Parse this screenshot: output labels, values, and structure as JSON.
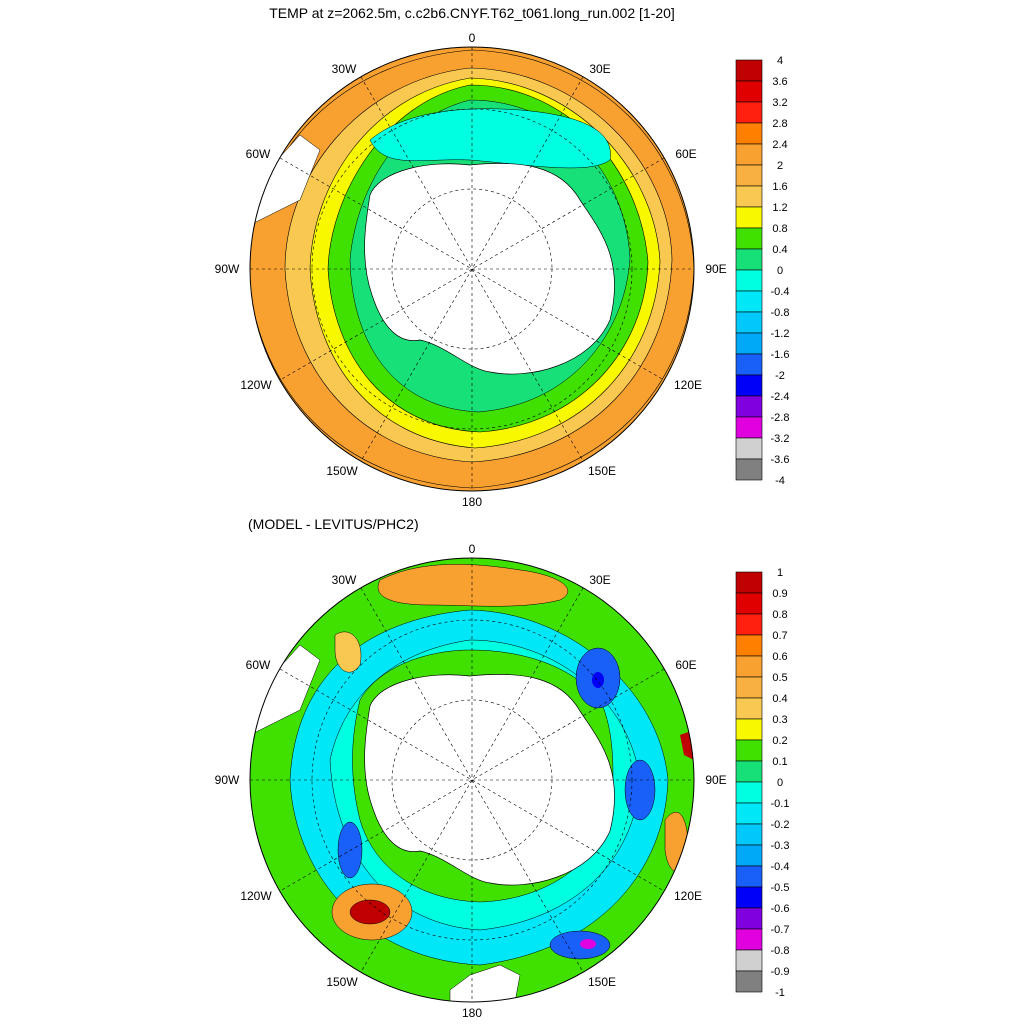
{
  "figure": {
    "top": {
      "title": "TEMP at z=2062.5m, c.c2b6.CNYF.T62_t061.long_run.002 [1-20]",
      "lon_labels": {
        "n": "0",
        "nw": "30W",
        "ne": "30E",
        "wnw": "60W",
        "ene": "60E",
        "w": "90W",
        "e": "90E",
        "wsw": "120W",
        "ese": "120E",
        "sw": "150W",
        "se": "150E",
        "s": "180"
      },
      "colorbar": {
        "labels": [
          "4",
          "3.6",
          "3.2",
          "2.8",
          "2.4",
          "2",
          "1.6",
          "1.2",
          "0.8",
          "0.4",
          "0",
          "-0.4",
          "-0.8",
          "-1.2",
          "-1.6",
          "-2",
          "-2.4",
          "-2.8",
          "-3.2",
          "-3.6",
          "-4"
        ],
        "colors": [
          "#c00000",
          "#e00000",
          "#ff2010",
          "#ff8000",
          "#f8a030",
          "#f8b040",
          "#f8c850",
          "#f8f800",
          "#40e000",
          "#18e078",
          "#00ffe0",
          "#00e8f8",
          "#00c8f8",
          "#00a8f8",
          "#1860f8",
          "#0000f8",
          "#8000e0",
          "#e000e0",
          "#d0d0d0",
          "#808080"
        ]
      }
    },
    "bottom": {
      "title": "(MODEL - LEVITUS/PHC2)",
      "lon_labels": {
        "n": "0",
        "nw": "30W",
        "ne": "30E",
        "wnw": "60W",
        "ene": "60E",
        "w": "90W",
        "e": "90E",
        "wsw": "120W",
        "ese": "120E",
        "sw": "150W",
        "se": "150E",
        "s": "180"
      },
      "colorbar": {
        "labels": [
          "1",
          "0.9",
          "0.8",
          "0.7",
          "0.6",
          "0.5",
          "0.4",
          "0.3",
          "0.2",
          "0.1",
          "0",
          "-0.1",
          "-0.2",
          "-0.3",
          "-0.4",
          "-0.5",
          "-0.6",
          "-0.7",
          "-0.8",
          "-0.9",
          "-1"
        ],
        "colors": [
          "#c00000",
          "#e00000",
          "#ff2010",
          "#ff8000",
          "#f8a030",
          "#f8b040",
          "#f8c850",
          "#f8f800",
          "#40e000",
          "#18e078",
          "#00ffe0",
          "#00e8f8",
          "#00c8f8",
          "#00a8f8",
          "#1860f8",
          "#0000f8",
          "#8000e0",
          "#e000e0",
          "#d0d0d0",
          "#808080"
        ]
      }
    }
  }
}
